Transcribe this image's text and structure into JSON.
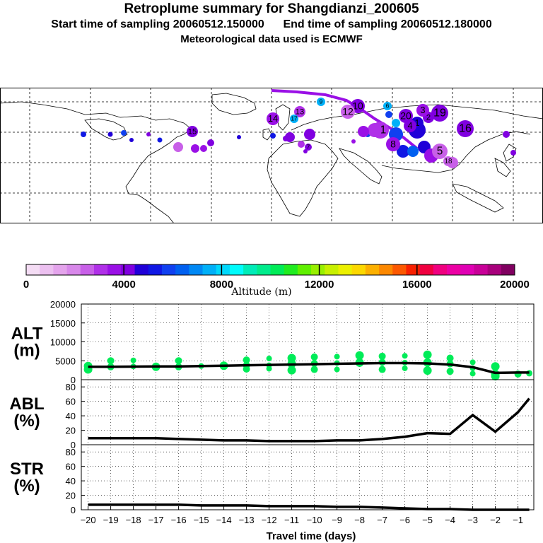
{
  "title": {
    "main": "Retroplume summary for Shangdianzi_200605",
    "start": "Start time of sampling 20060512.150000",
    "end": "End time of sampling 20060512.180000",
    "met": "Meteorological data used is ECMWF"
  },
  "colorbar": {
    "ticks": [
      "0",
      "4000",
      "8000",
      "12000",
      "16000",
      "20000"
    ],
    "label": "Altitude (m)",
    "colors": [
      "#f4dcf4",
      "#ecc0f0",
      "#e4a4ec",
      "#d888ea",
      "#c860e8",
      "#b030e8",
      "#9a10e6",
      "#8000e0",
      "#2000d8",
      "#1018e4",
      "#1040f0",
      "#0060f0",
      "#0088f4",
      "#00b0f8",
      "#00d8fc",
      "#00fcfc",
      "#00ecb8",
      "#00ec8c",
      "#00ec58",
      "#20ec20",
      "#60f000",
      "#98f000",
      "#c8f000",
      "#ecf000",
      "#fcd800",
      "#fcb000",
      "#fc8800",
      "#fc5800",
      "#f82000",
      "#f00040",
      "#f00080",
      "#ec00a4",
      "#e000b4",
      "#c80098",
      "#a8007c",
      "#800060"
    ]
  },
  "map": {
    "cluster_labels": [
      {
        "n": "1"
      },
      {
        "n": "2"
      },
      {
        "n": "3"
      },
      {
        "n": "4"
      },
      {
        "n": "5"
      },
      {
        "n": "6"
      },
      {
        "n": "7"
      },
      {
        "n": "8"
      },
      {
        "n": "9"
      },
      {
        "n": "10"
      },
      {
        "n": "11"
      },
      {
        "n": "12"
      },
      {
        "n": "13"
      },
      {
        "n": "14"
      },
      {
        "n": "15"
      },
      {
        "n": "16"
      },
      {
        "n": "17"
      },
      {
        "n": "18"
      },
      {
        "n": "19"
      },
      {
        "n": "20"
      }
    ]
  },
  "chart_data": [
    {
      "type": "line",
      "panel": "altitude",
      "ylabel_line1": "ALT",
      "ylabel_line2": "(m)",
      "ylim": [
        0,
        20000
      ],
      "yticks": [
        "0",
        "5000",
        "10000",
        "15000",
        "20000"
      ],
      "x": [
        -20,
        -19,
        -18,
        -17,
        -16,
        -15,
        -14,
        -13,
        -12,
        -11,
        -10,
        -9,
        -8,
        -7,
        -6,
        -5,
        -4,
        -3,
        -2,
        -1,
        -0.5
      ],
      "values": [
        3400,
        3400,
        3450,
        3500,
        3500,
        3600,
        3700,
        3800,
        3900,
        4000,
        4100,
        4200,
        4300,
        4400,
        4400,
        4300,
        4000,
        3300,
        1800,
        1900,
        1900
      ],
      "scatter_color": "#00ec58",
      "scatter": [
        {
          "x": -20,
          "y": 3600
        },
        {
          "x": -19,
          "y": 3400
        },
        {
          "x": -18,
          "y": 3500
        },
        {
          "x": -17,
          "y": 3400
        },
        {
          "x": -16,
          "y": 3400
        },
        {
          "x": -15,
          "y": 3600
        },
        {
          "x": -14,
          "y": 3700
        },
        {
          "x": -13,
          "y": 3800
        },
        {
          "x": -12,
          "y": 3800
        },
        {
          "x": -11,
          "y": 4200
        },
        {
          "x": -10,
          "y": 4300
        },
        {
          "x": -9,
          "y": 4400
        },
        {
          "x": -8,
          "y": 4500
        },
        {
          "x": -7,
          "y": 4600
        },
        {
          "x": -6,
          "y": 4500
        },
        {
          "x": -5,
          "y": 4500
        },
        {
          "x": -4,
          "y": 4200
        },
        {
          "x": -3,
          "y": 3000
        },
        {
          "x": -2,
          "y": 1500
        },
        {
          "x": -1,
          "y": 1500
        },
        {
          "x": -19,
          "y": 5000
        },
        {
          "x": -18,
          "y": 5100
        },
        {
          "x": -16,
          "y": 5000
        },
        {
          "x": -13,
          "y": 5200
        },
        {
          "x": -12,
          "y": 5600
        },
        {
          "x": -11,
          "y": 5700
        },
        {
          "x": -10,
          "y": 6000
        },
        {
          "x": -9,
          "y": 6100
        },
        {
          "x": -8,
          "y": 6400
        },
        {
          "x": -7,
          "y": 6200
        },
        {
          "x": -6,
          "y": 6300
        },
        {
          "x": -5,
          "y": 6600
        },
        {
          "x": -4,
          "y": 5700
        },
        {
          "x": -3,
          "y": 4600
        },
        {
          "x": -2,
          "y": 3500
        },
        {
          "x": -13,
          "y": 2800
        },
        {
          "x": -12,
          "y": 2900
        },
        {
          "x": -11,
          "y": 2500
        },
        {
          "x": -10,
          "y": 2700
        },
        {
          "x": -5,
          "y": 2400
        },
        {
          "x": -4,
          "y": 2200
        },
        {
          "x": -3,
          "y": 1600
        },
        {
          "x": -2,
          "y": 900
        },
        {
          "x": -0.5,
          "y": 1700
        },
        {
          "x": -9,
          "y": 2700
        },
        {
          "x": -7,
          "y": 2700
        },
        {
          "x": -6,
          "y": 3000
        },
        {
          "x": -20,
          "y": 2700
        }
      ]
    },
    {
      "type": "line",
      "panel": "abl",
      "ylabel_line1": "ABL",
      "ylabel_line2": "(%)",
      "ylim": [
        0,
        90
      ],
      "yticks": [
        "0",
        "20",
        "40",
        "60",
        "80"
      ],
      "x": [
        -20,
        -19,
        -18,
        -17,
        -16,
        -15,
        -14,
        -13,
        -12,
        -11,
        -10,
        -9,
        -8,
        -7,
        -6,
        -5,
        -4,
        -3,
        -2,
        -1,
        -0.5
      ],
      "values": [
        9,
        9,
        9,
        9,
        8,
        7,
        6,
        6,
        5,
        5,
        5,
        6,
        6,
        8,
        11,
        16,
        15,
        41,
        18,
        45,
        64
      ]
    },
    {
      "type": "line",
      "panel": "str",
      "ylabel_line1": "STR",
      "ylabel_line2": "(%)",
      "ylim": [
        0,
        90
      ],
      "yticks": [
        "0",
        "20",
        "40",
        "60",
        "80"
      ],
      "xlabel": "Travel time (days)",
      "xticks": [
        "−20",
        "−19",
        "−18",
        "−17",
        "−16",
        "−15",
        "−14",
        "−13",
        "−12",
        "−11",
        "−10",
        "−9",
        "−8",
        "−7",
        "−6",
        "−5",
        "−4",
        "−3",
        "−2",
        "−1"
      ],
      "x": [
        -20,
        -19,
        -18,
        -17,
        -16,
        -15,
        -14,
        -13,
        -12,
        -11,
        -10,
        -9,
        -8,
        -7,
        -6,
        -5,
        -4,
        -3,
        -2,
        -1,
        -0.5
      ],
      "values": [
        7,
        7,
        7,
        7,
        7,
        6,
        6,
        6,
        5,
        5,
        5,
        4,
        4,
        3,
        2,
        1,
        1,
        0,
        0,
        0,
        0
      ]
    }
  ]
}
